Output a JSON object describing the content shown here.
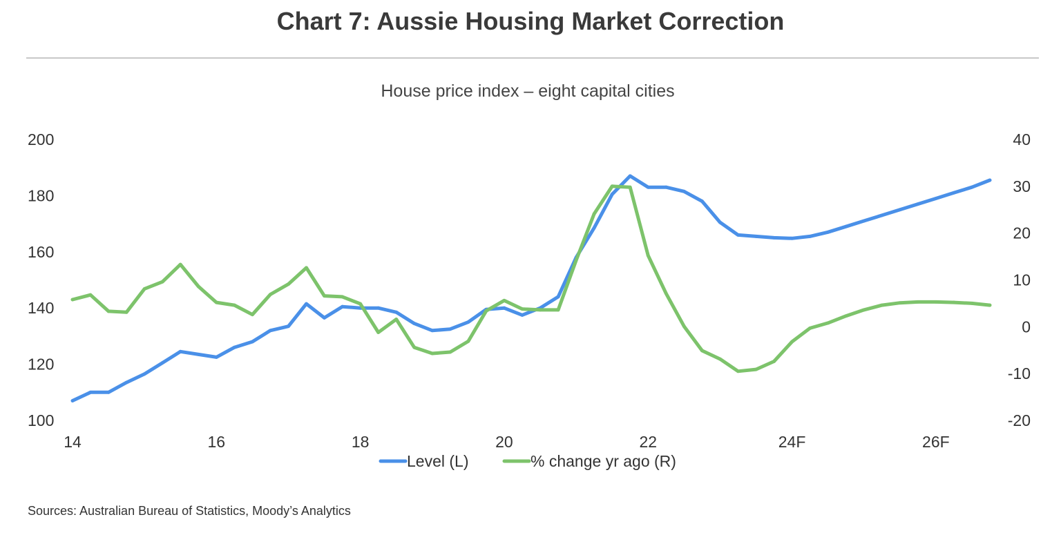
{
  "title": "Chart 7: Aussie Housing Market Correction",
  "subtitle": "House price index – eight capital cities",
  "source": "Sources: Australian Bureau of Statistics, Moody’s Analytics",
  "colors": {
    "level": "#4a90e8",
    "change": "#7dc36b",
    "text": "#333333"
  },
  "chart_data": {
    "type": "line",
    "title": "House price index – eight capital cities",
    "xlabel": "",
    "ylabel_left": "",
    "ylabel_right": "",
    "x_tick_labels": [
      "14",
      "16",
      "18",
      "20",
      "22",
      "24F",
      "26F"
    ],
    "x_tick_values": [
      2014,
      2016,
      2018,
      2020,
      2022,
      2024,
      2026
    ],
    "xlim": [
      2014,
      2026.75
    ],
    "y_left_ticks": [
      100,
      120,
      140,
      160,
      180,
      200
    ],
    "y_left_lim": [
      100,
      200
    ],
    "y_right_ticks": [
      -20,
      -10,
      0,
      10,
      20,
      30,
      40
    ],
    "y_right_lim": [
      -20,
      40
    ],
    "legend_position": "bottom",
    "x": [
      2014,
      2014.25,
      2014.5,
      2014.75,
      2015,
      2015.25,
      2015.5,
      2015.75,
      2016,
      2016.25,
      2016.5,
      2016.75,
      2017,
      2017.25,
      2017.5,
      2017.75,
      2018,
      2018.25,
      2018.5,
      2018.75,
      2019,
      2019.25,
      2019.5,
      2019.75,
      2020,
      2020.25,
      2020.5,
      2020.75,
      2021,
      2021.25,
      2021.5,
      2021.75,
      2022,
      2022.25,
      2022.5,
      2022.75,
      2023,
      2023.25,
      2023.5,
      2023.75,
      2024,
      2024.25,
      2024.5,
      2024.75,
      2025,
      2025.25,
      2025.5,
      2025.75,
      2026,
      2026.25,
      2026.5,
      2026.75
    ],
    "series": [
      {
        "name": "Level (L)",
        "axis": "left",
        "values": [
          107,
          110,
          110,
          113.5,
          116.5,
          120.5,
          124.5,
          123.5,
          122.5,
          126,
          128,
          132,
          133.5,
          141.5,
          136.5,
          140.5,
          140,
          140,
          138.5,
          134.5,
          132,
          132.5,
          135,
          139.5,
          140,
          137.5,
          140,
          144,
          158,
          168.5,
          180.5,
          187,
          183,
          183,
          181.5,
          178,
          170.5,
          166,
          165.5,
          165,
          164.8,
          165.5,
          167,
          169,
          171,
          173,
          175,
          177,
          179,
          181,
          183,
          185.5
        ]
      },
      {
        "name": "% change yr ago (R)",
        "axis": "right",
        "values": [
          5.8,
          6.8,
          3.3,
          3.1,
          8.1,
          9.6,
          13.3,
          8.6,
          5.2,
          4.6,
          2.6,
          6.9,
          9.1,
          12.6,
          6.6,
          6.4,
          4.9,
          -1.2,
          1.6,
          -4.4,
          -5.7,
          -5.4,
          -3.1,
          3.4,
          5.6,
          3.8,
          3.6,
          3.6,
          14.2,
          24.1,
          30,
          29.8,
          15.2,
          7.1,
          0.1,
          -5.1,
          -6.9,
          -9.5,
          -9.1,
          -7.4,
          -3.2,
          -0.3,
          0.8,
          2.3,
          3.6,
          4.6,
          5.1,
          5.3,
          5.3,
          5.2,
          5,
          4.6
        ]
      }
    ]
  }
}
